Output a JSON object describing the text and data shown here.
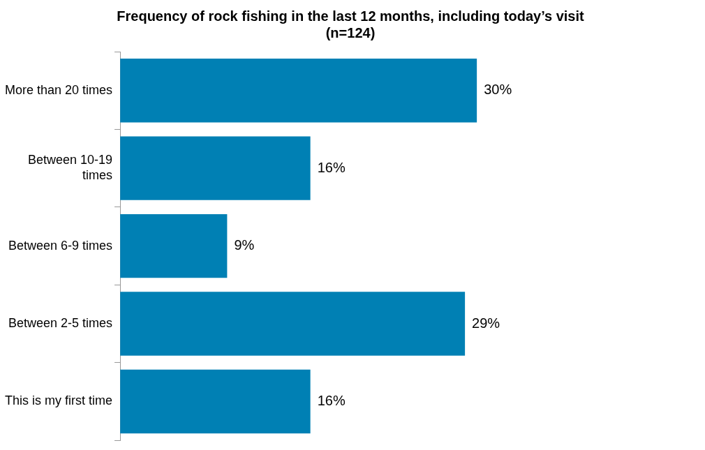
{
  "chart_data": {
    "type": "bar",
    "orientation": "horizontal",
    "title": "Frequency of rock fishing in the last 12 months, including today’s visit (n=124)",
    "categories": [
      "More than 20 times",
      "Between 10-19 times",
      "Between 6-9 times",
      "Between 2-5 times",
      "This is my first time"
    ],
    "values": [
      30,
      16,
      9,
      29,
      16
    ],
    "value_labels": [
      "30%",
      "16%",
      "9%",
      "29%",
      "16%"
    ],
    "color": "#0080b4"
  }
}
